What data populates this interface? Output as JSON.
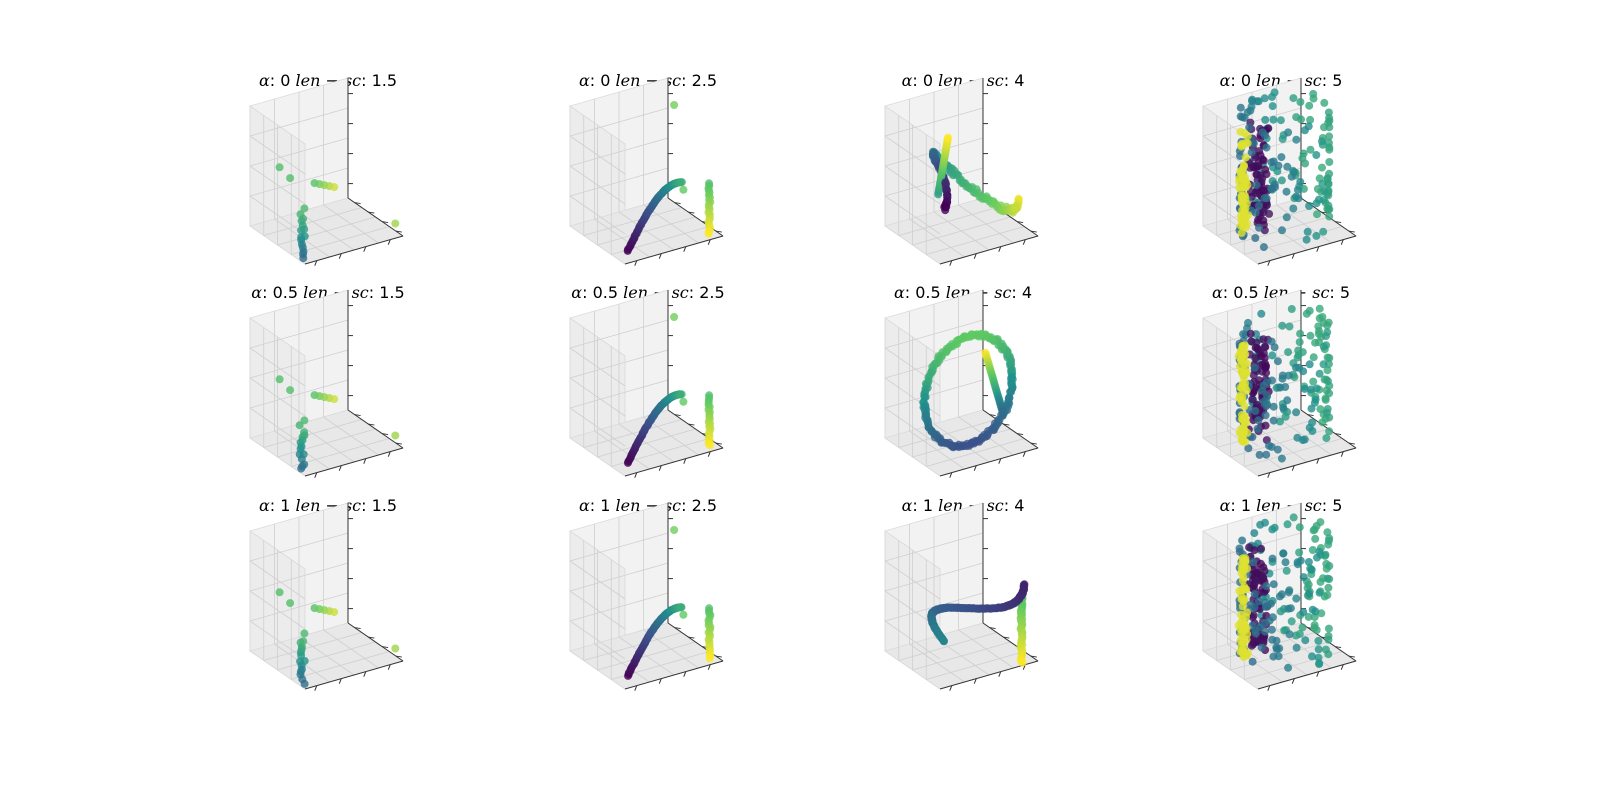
{
  "figure": {
    "layout": "3 rows x 4 columns of 3D scatter plots",
    "alpha_symbol": "α",
    "len_sc_label": "len − sc"
  },
  "chart_data": [
    {
      "type": "scatter",
      "projection": "3d",
      "alpha": "0",
      "len_sc": "1.5",
      "shape": "sparse-stick",
      "axes_tick_labels": false
    },
    {
      "type": "scatter",
      "projection": "3d",
      "alpha": "0",
      "len_sc": "2.5",
      "shape": "hook",
      "axes_tick_labels": false
    },
    {
      "type": "scatter",
      "projection": "3d",
      "alpha": "0",
      "len_sc": "4",
      "shape": "wave",
      "axes_tick_labels": false
    },
    {
      "type": "scatter",
      "projection": "3d",
      "alpha": "0",
      "len_sc": "5",
      "shape": "cylinder",
      "axes_tick_labels": false
    },
    {
      "type": "scatter",
      "projection": "3d",
      "alpha": "0.5",
      "len_sc": "1.5",
      "shape": "sparse-stick",
      "axes_tick_labels": false
    },
    {
      "type": "scatter",
      "projection": "3d",
      "alpha": "0.5",
      "len_sc": "2.5",
      "shape": "hook",
      "axes_tick_labels": false
    },
    {
      "type": "scatter",
      "projection": "3d",
      "alpha": "0.5",
      "len_sc": "4",
      "shape": "ring",
      "axes_tick_labels": false
    },
    {
      "type": "scatter",
      "projection": "3d",
      "alpha": "0.5",
      "len_sc": "5",
      "shape": "cylinder",
      "axes_tick_labels": false
    },
    {
      "type": "scatter",
      "projection": "3d",
      "alpha": "1",
      "len_sc": "1.5",
      "shape": "sparse-stick",
      "axes_tick_labels": false
    },
    {
      "type": "scatter",
      "projection": "3d",
      "alpha": "1",
      "len_sc": "2.5",
      "shape": "hook",
      "axes_tick_labels": false
    },
    {
      "type": "scatter",
      "projection": "3d",
      "alpha": "1",
      "len_sc": "4",
      "shape": "ribbon",
      "axes_tick_labels": false
    },
    {
      "type": "scatter",
      "projection": "3d",
      "alpha": "1",
      "len_sc": "5",
      "shape": "cylinder",
      "axes_tick_labels": false
    }
  ],
  "colormap": [
    "#440154",
    "#3b528b",
    "#21918c",
    "#5ec962",
    "#fde725"
  ]
}
